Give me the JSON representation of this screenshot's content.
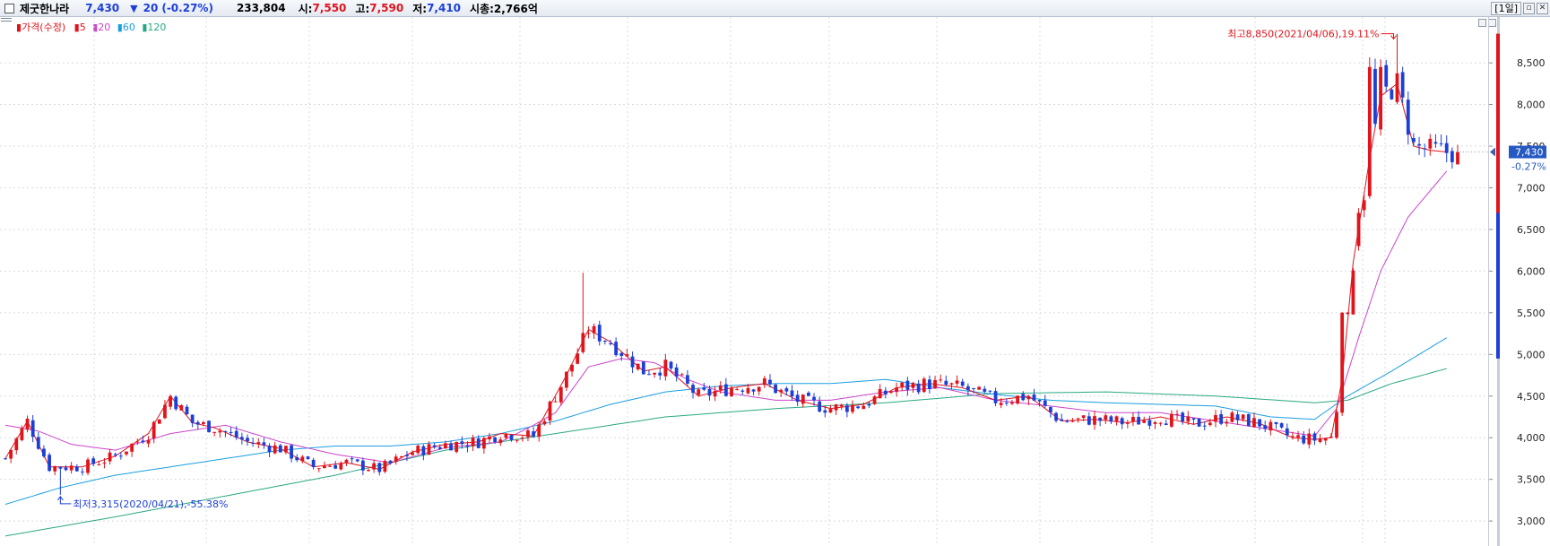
{
  "header": {
    "stock_name": "제굿한나라",
    "price": "7,430",
    "direction_symbol": "▼",
    "change": "20",
    "change_pct": "(-0.27%)",
    "volume": "233,804",
    "open_label": "시:",
    "open": "7,550",
    "high_label": "고:",
    "high": "7,590",
    "low_label": "저:",
    "low": "7,410",
    "market_cap": "시총:2,766억",
    "period": "[1일]"
  },
  "legend": {
    "price": "가격(수정)",
    "ma5": "5",
    "ma20": "20",
    "ma60": "60",
    "ma120": "120"
  },
  "colors": {
    "up": "#e0141c",
    "down": "#1c3fd8",
    "ma5": "#e0141c",
    "ma20": "#cc44cc",
    "ma60": "#1b9ee0",
    "ma120": "#2aa882",
    "grid": "#d5dbe4"
  },
  "chart_data": {
    "type": "candlestick",
    "y_axis": {
      "min": 2700,
      "max": 9050,
      "ticks": [
        3000,
        3500,
        4000,
        4500,
        5000,
        5500,
        6000,
        6500,
        7000,
        7500,
        8000,
        8500
      ],
      "tick_labels": [
        "3,000",
        "3,500",
        "4,000",
        "4,500",
        "5,000",
        "5,500",
        "6,000",
        "6,500",
        "7,000",
        "7,500",
        "8,000",
        "8,500"
      ],
      "position": "right"
    },
    "grid": true,
    "session_count": 265,
    "current_price": {
      "value": 7430,
      "label": "7,430",
      "pct_label": "-0.27%"
    },
    "annotations": {
      "high": {
        "value": 8850,
        "index": 253,
        "text": "최고8,850(2021/04/06),19.11%"
      },
      "low": {
        "value": 3315,
        "index": 10,
        "text": "최저3,315(2020/04/21),-55.38%"
      }
    },
    "series": {
      "ma5": [
        [
          0,
          3750
        ],
        [
          4,
          4200
        ],
        [
          8,
          3650
        ],
        [
          14,
          3650
        ],
        [
          20,
          3780
        ],
        [
          26,
          4050
        ],
        [
          30,
          4500
        ],
        [
          34,
          4180
        ],
        [
          38,
          4120
        ],
        [
          44,
          3950
        ],
        [
          50,
          3870
        ],
        [
          56,
          3650
        ],
        [
          62,
          3700
        ],
        [
          68,
          3620
        ],
        [
          74,
          3830
        ],
        [
          80,
          3920
        ],
        [
          86,
          3950
        ],
        [
          90,
          4050
        ],
        [
          96,
          4020
        ],
        [
          102,
          4750
        ],
        [
          106,
          5300
        ],
        [
          110,
          5150
        ],
        [
          116,
          4800
        ],
        [
          120,
          4850
        ],
        [
          126,
          4500
        ],
        [
          132,
          4600
        ],
        [
          138,
          4650
        ],
        [
          144,
          4450
        ],
        [
          150,
          4350
        ],
        [
          156,
          4400
        ],
        [
          162,
          4600
        ],
        [
          168,
          4650
        ],
        [
          174,
          4600
        ],
        [
          180,
          4450
        ],
        [
          186,
          4500
        ],
        [
          192,
          4200
        ],
        [
          198,
          4220
        ],
        [
          204,
          4180
        ],
        [
          210,
          4250
        ],
        [
          216,
          4160
        ],
        [
          222,
          4250
        ],
        [
          228,
          4170
        ],
        [
          234,
          4000
        ],
        [
          238,
          3980
        ],
        [
          241,
          4000
        ],
        [
          243,
          4700
        ],
        [
          245,
          6100
        ],
        [
          248,
          7350
        ],
        [
          250,
          8100
        ],
        [
          253,
          8250
        ],
        [
          256,
          7500
        ],
        [
          259,
          7450
        ],
        [
          262,
          7430
        ]
      ],
      "ma20": [
        [
          0,
          4150
        ],
        [
          6,
          4080
        ],
        [
          12,
          3920
        ],
        [
          20,
          3850
        ],
        [
          30,
          4050
        ],
        [
          40,
          4150
        ],
        [
          50,
          3950
        ],
        [
          60,
          3800
        ],
        [
          70,
          3700
        ],
        [
          80,
          3880
        ],
        [
          90,
          3950
        ],
        [
          96,
          4150
        ],
        [
          100,
          4300
        ],
        [
          106,
          4850
        ],
        [
          112,
          4950
        ],
        [
          118,
          4900
        ],
        [
          124,
          4700
        ],
        [
          130,
          4550
        ],
        [
          140,
          4450
        ],
        [
          150,
          4450
        ],
        [
          160,
          4550
        ],
        [
          170,
          4600
        ],
        [
          180,
          4450
        ],
        [
          190,
          4380
        ],
        [
          200,
          4300
        ],
        [
          210,
          4300
        ],
        [
          220,
          4200
        ],
        [
          230,
          4100
        ],
        [
          238,
          4020
        ],
        [
          242,
          4350
        ],
        [
          246,
          5200
        ],
        [
          250,
          6000
        ],
        [
          255,
          6650
        ],
        [
          262,
          7200
        ]
      ],
      "ma60": [
        [
          0,
          3200
        ],
        [
          10,
          3400
        ],
        [
          20,
          3550
        ],
        [
          30,
          3650
        ],
        [
          40,
          3750
        ],
        [
          50,
          3850
        ],
        [
          60,
          3900
        ],
        [
          70,
          3900
        ],
        [
          80,
          3950
        ],
        [
          90,
          4050
        ],
        [
          100,
          4200
        ],
        [
          110,
          4400
        ],
        [
          120,
          4550
        ],
        [
          130,
          4620
        ],
        [
          140,
          4650
        ],
        [
          150,
          4650
        ],
        [
          160,
          4700
        ],
        [
          170,
          4600
        ],
        [
          180,
          4520
        ],
        [
          190,
          4450
        ],
        [
          200,
          4420
        ],
        [
          210,
          4400
        ],
        [
          220,
          4380
        ],
        [
          230,
          4250
        ],
        [
          238,
          4220
        ],
        [
          244,
          4500
        ],
        [
          252,
          4800
        ],
        [
          262,
          5200
        ]
      ],
      "ma120": [
        [
          0,
          2820
        ],
        [
          20,
          3050
        ],
        [
          40,
          3300
        ],
        [
          60,
          3550
        ],
        [
          80,
          3850
        ],
        [
          100,
          4050
        ],
        [
          120,
          4250
        ],
        [
          140,
          4350
        ],
        [
          160,
          4420
        ],
        [
          180,
          4530
        ],
        [
          200,
          4550
        ],
        [
          220,
          4500
        ],
        [
          238,
          4420
        ],
        [
          244,
          4450
        ],
        [
          252,
          4650
        ],
        [
          262,
          4830
        ]
      ]
    }
  }
}
